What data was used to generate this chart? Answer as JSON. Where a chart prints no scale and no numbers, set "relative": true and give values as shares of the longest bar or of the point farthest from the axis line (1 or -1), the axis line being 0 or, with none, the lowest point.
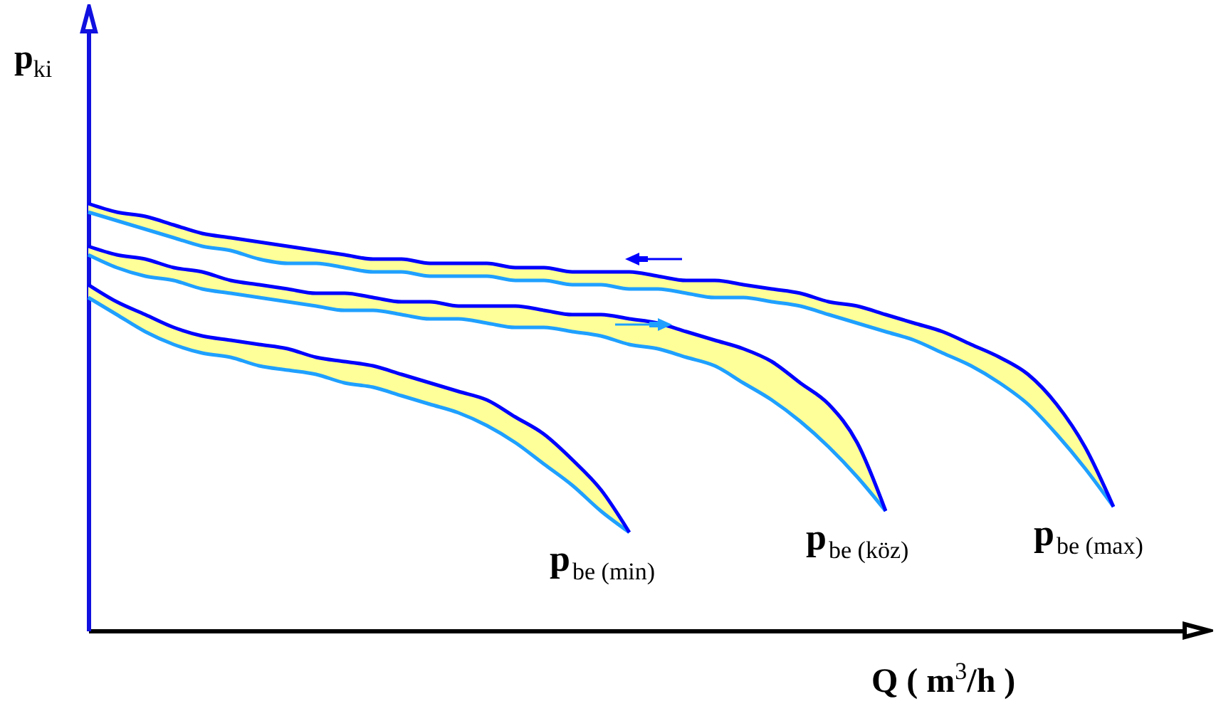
{
  "chart_data": {
    "type": "line",
    "relative": true,
    "xlabel": "Q ( m$^{3}$/h )",
    "ylabel": "p$_{ki}$",
    "categories": [
      null,
      null,
      null,
      null,
      null,
      null,
      null,
      null,
      null,
      null,
      null,
      null,
      null,
      null,
      null,
      null,
      null,
      null,
      null,
      null,
      null,
      null,
      null,
      null,
      null,
      null,
      null,
      null,
      null,
      null,
      null,
      null,
      null,
      null,
      null,
      null,
      null,
      null,
      null,
      null
    ],
    "series": [
      {
        "color": "#1fa0ff",
        "values": [
          0.78,
          0.74,
          0.7,
          0.67,
          0.65,
          0.64,
          0.62,
          0.61,
          0.6,
          0.58,
          0.57,
          0.55,
          0.53,
          0.51,
          0.48,
          0.44,
          0.39,
          0.34,
          0.28,
          0.23,
          null,
          null,
          null,
          null,
          null,
          null,
          null,
          null,
          null,
          null,
          null,
          null,
          null,
          null,
          null,
          null,
          null,
          null,
          null,
          null
        ],
        "lower": [
          0.78,
          0.74,
          0.7,
          0.67,
          0.65,
          0.64,
          0.62,
          0.61,
          0.6,
          0.58,
          0.57,
          0.55,
          0.53,
          0.51,
          0.48,
          0.44,
          0.39,
          0.34,
          0.28,
          0.23,
          null,
          null,
          null,
          null,
          null,
          null,
          null,
          null,
          null,
          null,
          null,
          null,
          null,
          null,
          null,
          null,
          null,
          null,
          null,
          null
        ],
        "upper": [
          0.81,
          0.77,
          0.74,
          0.71,
          0.69,
          0.68,
          0.67,
          0.66,
          0.64,
          0.63,
          0.62,
          0.6,
          0.58,
          0.56,
          0.54,
          0.5,
          0.46,
          0.4,
          0.33,
          0.23,
          null,
          null,
          null,
          null,
          null,
          null,
          null,
          null,
          null,
          null,
          null,
          null,
          null,
          null,
          null,
          null,
          null,
          null,
          null,
          null
        ]
      },
      {
        "name": "p$_{be (min)}$",
        "color": "#0000ff",
        "values": [
          0.81,
          0.77,
          0.74,
          0.71,
          0.69,
          0.68,
          0.67,
          0.66,
          0.64,
          0.63,
          0.62,
          0.6,
          0.58,
          0.56,
          0.54,
          0.5,
          0.46,
          0.4,
          0.33,
          0.23,
          null,
          null,
          null,
          null,
          null,
          null,
          null,
          null,
          null,
          null,
          null,
          null,
          null,
          null,
          null,
          null,
          null,
          null,
          null,
          null
        ]
      },
      {
        "color": "#1fa0ff",
        "values": [
          0.88,
          0.85,
          0.83,
          0.82,
          0.8,
          0.79,
          0.78,
          0.77,
          0.76,
          0.75,
          0.75,
          0.74,
          0.73,
          0.73,
          0.72,
          0.71,
          0.71,
          0.7,
          0.69,
          0.67,
          0.66,
          0.64,
          0.62,
          0.58,
          0.54,
          0.49,
          0.43,
          0.36,
          0.28,
          null,
          null,
          null,
          null,
          null,
          null,
          null,
          null,
          null,
          null,
          null
        ],
        "lower": [
          0.88,
          0.85,
          0.83,
          0.82,
          0.8,
          0.79,
          0.78,
          0.77,
          0.76,
          0.75,
          0.75,
          0.74,
          0.73,
          0.73,
          0.72,
          0.71,
          0.71,
          0.7,
          0.69,
          0.67,
          0.66,
          0.64,
          0.62,
          0.58,
          0.54,
          0.49,
          0.43,
          0.36,
          0.28,
          null,
          null,
          null,
          null,
          null,
          null,
          null,
          null,
          null,
          null,
          null
        ],
        "upper": [
          0.9,
          0.88,
          0.87,
          0.85,
          0.84,
          0.82,
          0.81,
          0.8,
          0.79,
          0.79,
          0.78,
          0.77,
          0.77,
          0.76,
          0.76,
          0.76,
          0.75,
          0.74,
          0.74,
          0.73,
          0.72,
          0.7,
          0.68,
          0.66,
          0.63,
          0.58,
          0.53,
          0.44,
          0.28,
          null,
          null,
          null,
          null,
          null,
          null,
          null,
          null,
          null,
          null,
          null
        ]
      },
      {
        "name": "p$_{be (köz)}$",
        "color": "#0000ff",
        "values": [
          0.9,
          0.88,
          0.87,
          0.85,
          0.84,
          0.82,
          0.81,
          0.8,
          0.79,
          0.79,
          0.78,
          0.77,
          0.77,
          0.76,
          0.76,
          0.76,
          0.75,
          0.74,
          0.74,
          0.73,
          0.72,
          0.7,
          0.68,
          0.66,
          0.63,
          0.58,
          0.53,
          0.44,
          0.28,
          null,
          null,
          null,
          null,
          null,
          null,
          null,
          null,
          null,
          null,
          null
        ]
      },
      {
        "color": "#1fa0ff",
        "values": [
          0.98,
          0.96,
          0.94,
          0.92,
          0.9,
          0.89,
          0.87,
          0.86,
          0.86,
          0.85,
          0.84,
          0.84,
          0.83,
          0.83,
          0.83,
          0.82,
          0.82,
          0.81,
          0.81,
          0.8,
          0.8,
          0.79,
          0.78,
          0.78,
          0.77,
          0.76,
          0.74,
          0.72,
          0.7,
          0.68,
          0.65,
          0.62,
          0.58,
          0.53,
          0.46,
          0.38,
          0.29,
          null,
          null,
          null
        ],
        "lower": [
          0.98,
          0.96,
          0.94,
          0.92,
          0.9,
          0.89,
          0.87,
          0.86,
          0.86,
          0.85,
          0.84,
          0.84,
          0.83,
          0.83,
          0.83,
          0.82,
          0.82,
          0.81,
          0.81,
          0.8,
          0.8,
          0.79,
          0.78,
          0.78,
          0.77,
          0.76,
          0.74,
          0.72,
          0.7,
          0.68,
          0.65,
          0.62,
          0.58,
          0.53,
          0.46,
          0.38,
          0.29,
          null,
          null,
          null
        ],
        "upper": [
          1.0,
          0.98,
          0.97,
          0.95,
          0.93,
          0.92,
          0.91,
          0.9,
          0.89,
          0.88,
          0.87,
          0.87,
          0.86,
          0.86,
          0.86,
          0.85,
          0.85,
          0.84,
          0.84,
          0.84,
          0.83,
          0.82,
          0.82,
          0.81,
          0.8,
          0.79,
          0.77,
          0.76,
          0.74,
          0.72,
          0.7,
          0.67,
          0.64,
          0.6,
          0.53,
          0.43,
          0.29,
          null,
          null,
          null
        ]
      },
      {
        "name": "p$_{be (max)}$",
        "color": "#0000ff",
        "values": [
          1.0,
          0.98,
          0.97,
          0.95,
          0.93,
          0.92,
          0.91,
          0.9,
          0.89,
          0.88,
          0.87,
          0.87,
          0.86,
          0.86,
          0.86,
          0.85,
          0.85,
          0.84,
          0.84,
          0.84,
          0.83,
          0.82,
          0.82,
          0.81,
          0.8,
          0.79,
          0.77,
          0.76,
          0.74,
          0.72,
          0.7,
          0.67,
          0.64,
          0.6,
          0.53,
          0.43,
          0.29,
          null,
          null,
          null
        ]
      }
    ]
  }
}
